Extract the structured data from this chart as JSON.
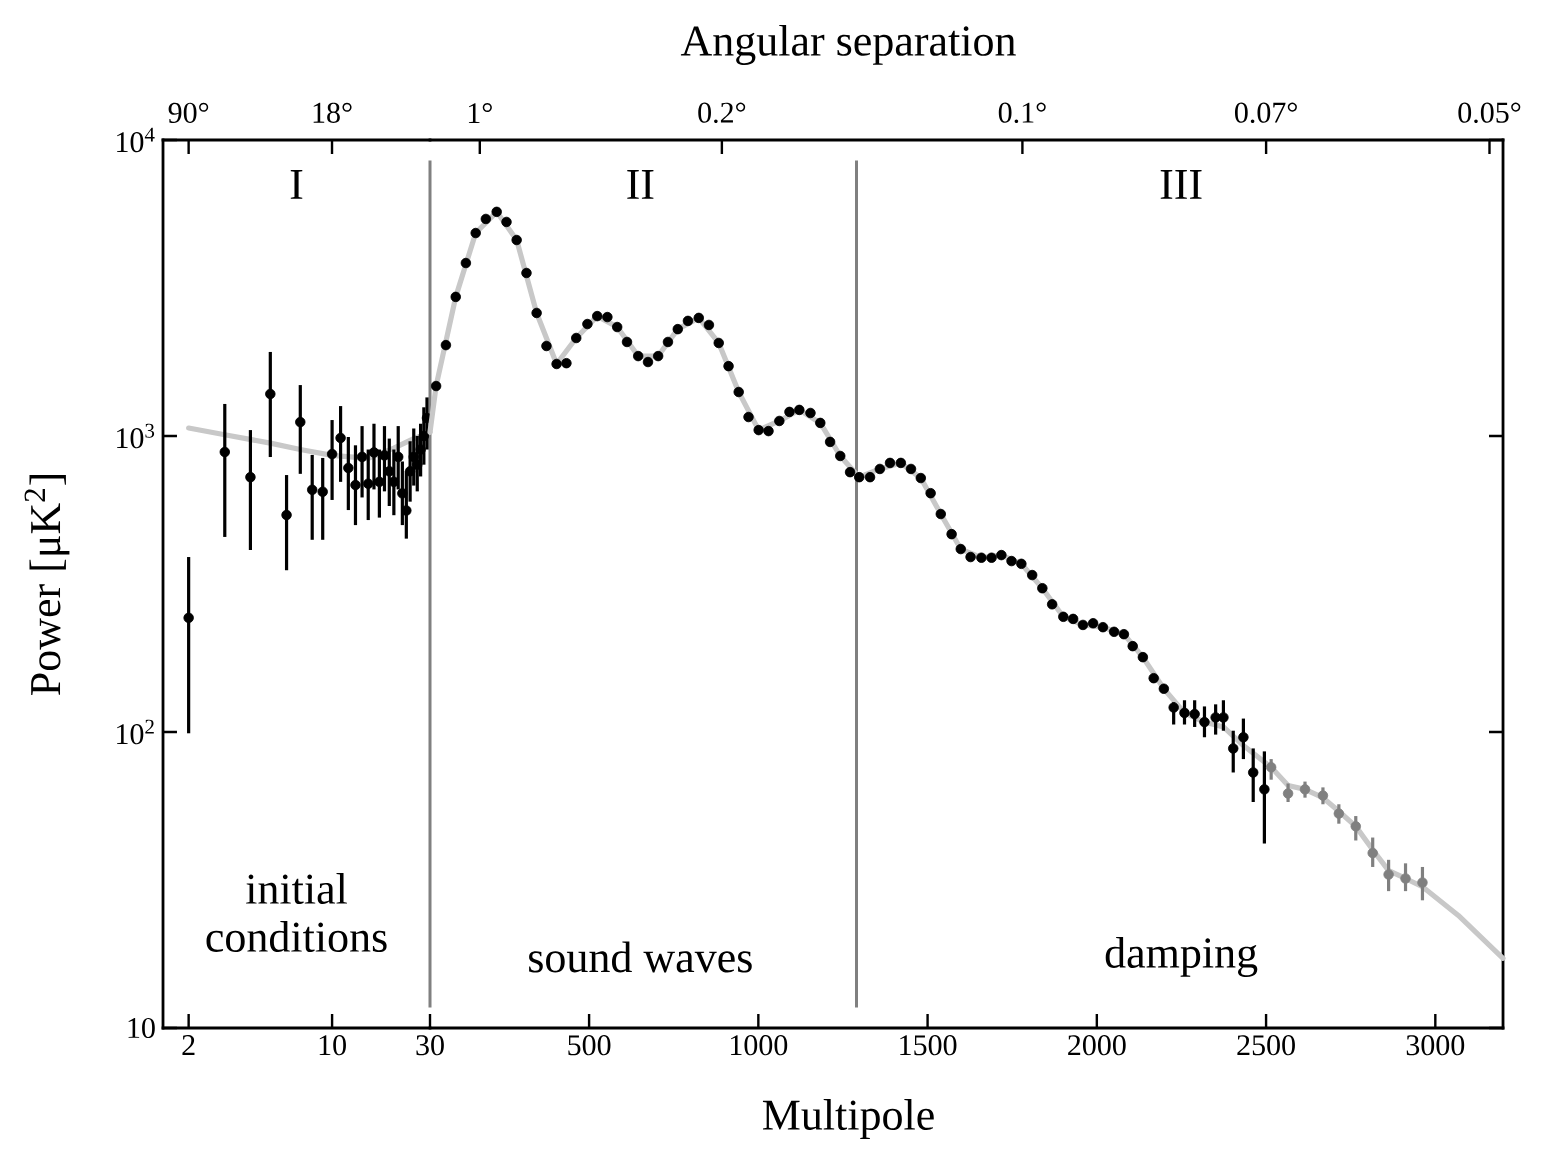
{
  "chart_data": [
    {
      "type": "scatter",
      "ylabel": "Power [μK$^{2}$]",
      "xlim": [
        1.5,
        30
      ],
      "ylim": [
        10,
        10000
      ],
      "xticks": [
        2,
        10,
        30
      ],
      "yticks": [
        {
          "value": 10,
          "label": "10"
        },
        {
          "value": 100,
          "label": "10$^{2}$"
        },
        {
          "value": 1000,
          "label": "10$^{3}$"
        },
        {
          "value": 10000,
          "label": "10$^{4}$"
        }
      ],
      "log": "xy",
      "annotations": [
        "I",
        "initial conditions",
        "90°",
        "18°"
      ],
      "series": [
        {
          "type": "line",
          "color": "#c8c8c8",
          "x": [
            2,
            3,
            5,
            7,
            10,
            15,
            20,
            25,
            30
          ],
          "values": [
            1064,
            1010,
            946,
            900,
            860,
            840,
            910,
            980,
            1030
          ]
        },
        {
          "color": "#000000",
          "marker": "circle",
          "x": [
            2,
            3,
            4,
            5,
            6,
            7,
            8,
            9,
            10,
            11,
            12,
            13,
            14,
            15,
            16,
            17,
            18,
            19,
            20,
            21,
            22,
            23,
            24,
            25,
            26,
            27,
            28,
            29
          ],
          "values": [
            243,
            883,
            726,
            1387,
            541,
            1114,
            658,
            648,
            869,
            985,
            780,
            683,
            850,
            690,
            880,
            700,
            860,
            760,
            700,
            850,
            640,
            560,
            760,
            850,
            800,
            900,
            1000,
            1150
          ],
          "errors": [
            [
              99,
              390
            ],
            [
              456,
              1283
            ],
            [
              412,
              1047
            ],
            [
              849,
              1923
            ],
            [
              352,
              738
            ],
            [
              745,
              1486
            ],
            [
              446,
              863
            ],
            [
              446,
              843
            ],
            [
              608,
              1132
            ],
            [
              700,
              1262
            ],
            [
              562,
              992
            ],
            [
              500,
              930
            ],
            [
              620,
              1080
            ],
            [
              520,
              900
            ],
            [
              660,
              1100
            ],
            [
              530,
              900
            ],
            [
              650,
              1080
            ],
            [
              580,
              980
            ],
            [
              540,
              900
            ],
            [
              660,
              1080
            ],
            [
              500,
              820
            ],
            [
              450,
              760
            ],
            [
              600,
              960
            ],
            [
              680,
              1060
            ],
            [
              650,
              1000
            ],
            [
              730,
              1100
            ],
            [
              800,
              1250
            ],
            [
              900,
              1350
            ]
          ]
        }
      ]
    },
    {
      "type": "scatter",
      "xlabel": "Multipole",
      "x2label": "Angular separation",
      "xlim": [
        30,
        3200
      ],
      "ylim": [
        10,
        10000
      ],
      "xticks": [
        500,
        1000,
        1500,
        2000,
        2500,
        3000
      ],
      "yticks": [
        {
          "value": 10,
          "label": null
        },
        {
          "value": 100,
          "label": null
        },
        {
          "value": 1000,
          "label": null
        },
        {
          "value": 10000,
          "label": null
        }
      ],
      "log": "y",
      "tick_labels": "x",
      "ref_lines": [
        {
          "axis": "x",
          "value": 1290,
          "color": "#808080"
        }
      ],
      "annotations": [
        "II",
        "sound waves",
        "III",
        "damping",
        "1°",
        "0.2°",
        "0.1°",
        "0.07°",
        "0.05°"
      ],
      "series": [
        {
          "type": "line",
          "color": "#c8c8c8",
          "x": [
            30,
            48,
            106,
            165,
            227,
            286,
            345,
            404,
            462,
            524,
            583,
            645,
            704,
            762,
            824,
            883,
            942,
            1001,
            1062,
            1121,
            1183,
            1242,
            1298,
            1359,
            1421,
            1480,
            1539,
            1598,
            1659,
            1718,
            1777,
            1839,
            1901,
            1959,
            2018,
            2080,
            2136,
            2198,
            2259,
            2318,
            2374,
            2433,
            2515,
            2565,
            2615,
            2668,
            2715,
            2765,
            2815,
            2862,
            2912,
            2962,
            3068,
            3200
          ],
          "values": [
            1030,
            1475,
            2951,
            4849,
            5718,
            4593,
            2604,
            1751,
            2143,
            2541,
            2334,
            1862,
            1862,
            2296,
            2506,
            2062,
            1408,
            1047,
            1124,
            1225,
            1107,
            856,
            726,
            774,
            811,
            721,
            545,
            415,
            388,
            396,
            370,
            306,
            245,
            230,
            226,
            214,
            179,
            140,
            116,
            108,
            104,
            90,
            76,
            66,
            64,
            60,
            54,
            48,
            40,
            34,
            32,
            30,
            24,
            17.2
          ]
        },
        {
          "color": "#000000",
          "marker": "circle",
          "x": [
            48,
            77,
            106,
            136,
            165,
            195,
            227,
            256,
            286,
            315,
            345,
            374,
            404,
            433,
            462,
            495,
            524,
            554,
            583,
            612,
            645,
            674,
            704,
            733,
            762,
            792,
            824,
            854,
            883,
            912,
            942,
            971,
            1001,
            1030,
            1062,
            1092,
            1121,
            1154,
            1183,
            1212,
            1242,
            1271,
            1298,
            1330,
            1359,
            1389,
            1421,
            1451,
            1480,
            1509,
            1539,
            1571,
            1598,
            1627,
            1659,
            1689,
            1718,
            1748,
            1777,
            1809,
            1839,
            1868,
            1901,
            1930,
            1959,
            1989,
            2018,
            2051,
            2080,
            2106,
            2136,
            2168,
            2198,
            2227,
            2259,
            2289,
            2318,
            2351,
            2374,
            2403,
            2433,
            2462,
            2495
          ],
          "values": [
            1475,
            2028,
            2951,
            3841,
            4849,
            5410,
            5718,
            5286,
            4593,
            3554,
            2604,
            2014,
            1751,
            1762,
            2143,
            2389,
            2541,
            2522,
            2334,
            2078,
            1862,
            1778,
            1862,
            2078,
            2296,
            2448,
            2506,
            2372,
            2062,
            1722,
            1408,
            1159,
            1047,
            1039,
            1124,
            1206,
            1225,
            1196,
            1107,
            955,
            856,
            755,
            726,
            726,
            774,
            811,
            811,
            774,
            721,
            641,
            545,
            466,
            415,
            390,
            388,
            388,
            396,
            378,
            370,
            339,
            306,
            270,
            245,
            241,
            230,
            233,
            226,
            218,
            214,
            195,
            179,
            152,
            140,
            121,
            116,
            115,
            108,
            112,
            112,
            88,
            96,
            73,
            64
          ],
          "errors": [
            null,
            null,
            null,
            null,
            null,
            null,
            null,
            null,
            null,
            null,
            null,
            null,
            null,
            null,
            null,
            null,
            null,
            null,
            null,
            null,
            null,
            null,
            null,
            null,
            null,
            null,
            null,
            null,
            null,
            null,
            null,
            null,
            null,
            null,
            null,
            null,
            null,
            null,
            null,
            null,
            null,
            null,
            null,
            null,
            null,
            null,
            null,
            null,
            null,
            null,
            null,
            null,
            null,
            null,
            null,
            null,
            null,
            null,
            null,
            null,
            null,
            null,
            null,
            null,
            null,
            null,
            null,
            null,
            null,
            null,
            null,
            null,
            null,
            [
              106,
              126
            ],
            [
              106,
              128
            ],
            [
              104,
              128
            ],
            [
              96,
              122
            ],
            [
              98,
              124
            ],
            [
              101,
              128
            ],
            [
              73,
              101
            ],
            [
              81,
              111
            ],
            [
              58,
              88
            ],
            [
              42,
              86
            ]
          ]
        },
        {
          "color": "#808080",
          "marker": "circle",
          "x": [
            2515,
            2565,
            2615,
            2668,
            2715,
            2765,
            2815,
            2862,
            2912,
            2962
          ],
          "values": [
            76,
            62,
            64,
            61,
            53,
            48,
            39,
            33,
            32,
            31
          ],
          "errors": [
            [
              69,
              81
            ],
            [
              58,
              67
            ],
            [
              60,
              68
            ],
            [
              57,
              65
            ],
            [
              49,
              57
            ],
            [
              43,
              52
            ],
            [
              35,
              44
            ],
            [
              29,
              37
            ],
            [
              29,
              36
            ],
            [
              27,
              35
            ]
          ]
        }
      ]
    }
  ]
}
